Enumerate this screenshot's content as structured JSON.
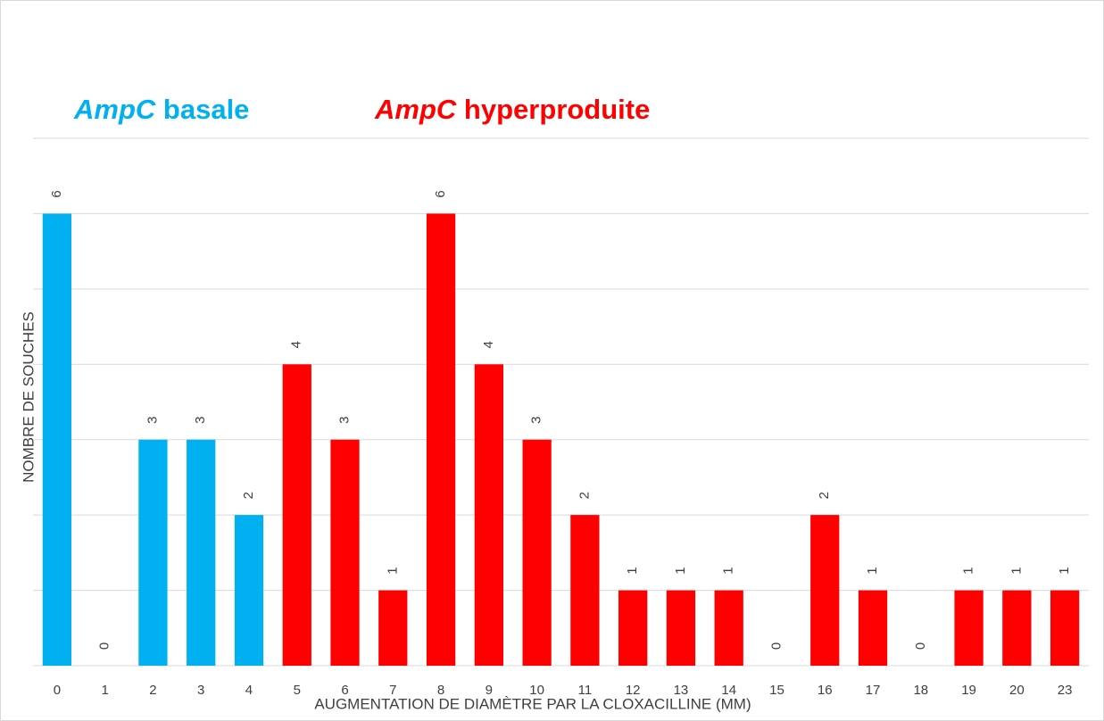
{
  "chart_data": {
    "type": "bar",
    "legend": [
      {
        "italic": "AmpC",
        "text": "basale",
        "color": "#00b0f0"
      },
      {
        "italic": "AmpC",
        "text": "hyperproduite",
        "color": "#ff0000"
      }
    ],
    "xlabel": "AUGMENTATION DE DIAMÈTRE PAR LA CLOXACILLINE (MM)",
    "ylabel": "NOMBRE DE SOUCHES",
    "categories": [
      "0",
      "1",
      "2",
      "3",
      "4",
      "5",
      "6",
      "7",
      "8",
      "9",
      "10",
      "11",
      "12",
      "13",
      "14",
      "15",
      "16",
      "17",
      "18",
      "19",
      "20",
      "23"
    ],
    "values": [
      6,
      0,
      3,
      3,
      2,
      4,
      3,
      1,
      6,
      4,
      3,
      2,
      1,
      1,
      1,
      0,
      2,
      1,
      0,
      1,
      1,
      1
    ],
    "colors": [
      "#00b0f0",
      "#00b0f0",
      "#00b0f0",
      "#00b0f0",
      "#00b0f0",
      "#ff0000",
      "#ff0000",
      "#ff0000",
      "#ff0000",
      "#ff0000",
      "#ff0000",
      "#ff0000",
      "#ff0000",
      "#ff0000",
      "#ff0000",
      "#ff0000",
      "#ff0000",
      "#ff0000",
      "#ff0000",
      "#ff0000",
      "#ff0000",
      "#ff0000"
    ],
    "ylim": [
      0,
      7
    ],
    "yticks": [
      0,
      1,
      2,
      3,
      4,
      5,
      6,
      7
    ],
    "grid": true
  }
}
